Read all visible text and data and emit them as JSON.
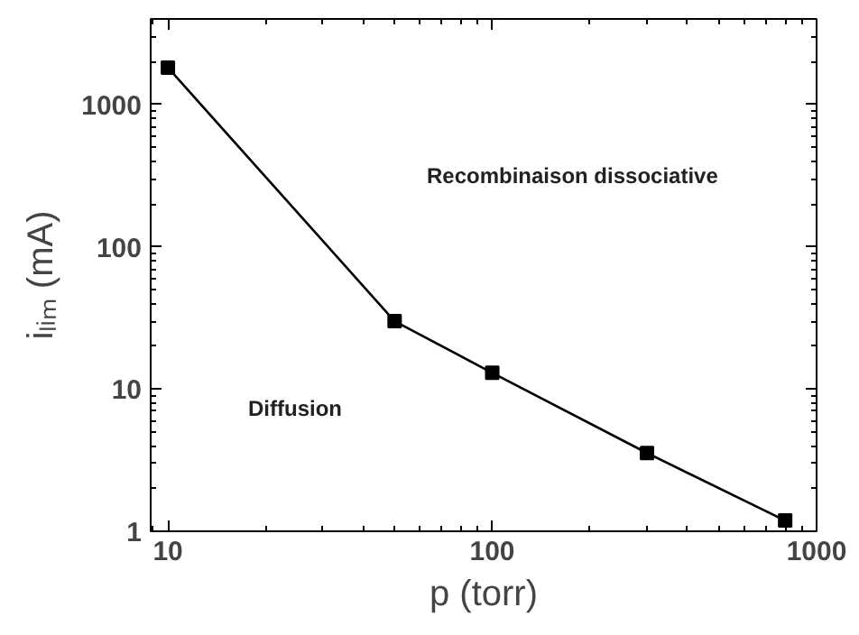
{
  "chart_data": {
    "type": "line",
    "xlabel": "p (torr)",
    "ylabel": "iₗᵢₘ (mA)",
    "log": "xy",
    "x": [
      10,
      50,
      100,
      300,
      800
    ],
    "series": [
      {
        "color": "#000000",
        "values": [
          1820,
          30,
          13,
          3.55,
          1.19
        ]
      }
    ],
    "xlim": [
      8.85,
      1000
    ],
    "xticks": [
      10,
      100,
      1000
    ],
    "ylim": [
      1,
      4000
    ],
    "yticks": [
      1,
      10,
      100,
      1000
    ],
    "marker": "square",
    "line_style": "solid",
    "grid": false,
    "annotations": [
      "Recombinaison dissociative",
      "Diffusion"
    ]
  }
}
